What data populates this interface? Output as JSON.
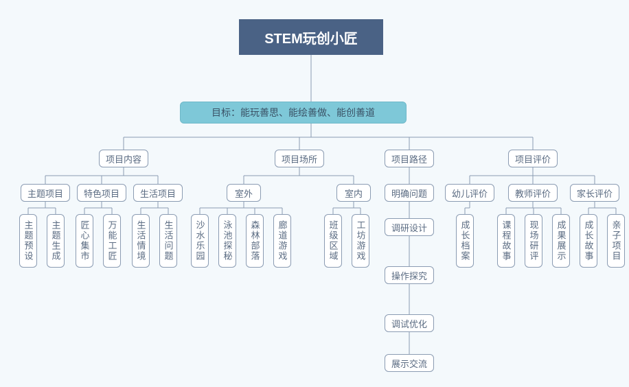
{
  "diagram": {
    "type": "tree",
    "background_color": "#f4f9fc",
    "node_border_color": "#8a9bb2",
    "node_bg_color": "#ffffff",
    "node_text_color": "#5a6b82",
    "connector_color": "#8a9bb2",
    "root": {
      "label": "STEM玩创小匠",
      "bg_color": "#4a6285",
      "text_color": "#ffffff",
      "font_size": 20
    },
    "goal": {
      "label": "目标：能玩善思、能绘善做、能创善道",
      "bg_color": "#7ec8d8",
      "text_color": "#3a5266",
      "font_size": 14
    },
    "level3": {
      "content": "项目内容",
      "place": "项目场所",
      "path": "项目路径",
      "eval": "项目评价"
    },
    "level4": {
      "theme": "主题项目",
      "feature": "特色项目",
      "life": "生活项目",
      "outdoor": "室外",
      "indoor": "室内",
      "clarify": "明确问题",
      "child": "幼儿评价",
      "teacher": "教师评价",
      "parent": "家长评价"
    },
    "leaves": {
      "theme1": "主题预设",
      "theme2": "主题生成",
      "feature1": "匠心集市",
      "feature2": "万能工匠",
      "life1": "生活情境",
      "life2": "生活问题",
      "out1": "沙水乐园",
      "out2": "泳池探秘",
      "out3": "森林部落",
      "out4": "廊道游戏",
      "in1": "班级区域",
      "in2": "工坊游戏",
      "path2": "调研设计",
      "path3": "操作探究",
      "path4": "调试优化",
      "path5": "展示交流",
      "child1": "成长档案",
      "teacher1": "课程故事",
      "teacher2": "现场研评",
      "teacher3": "成果展示",
      "parent1": "成长故事",
      "parent2": "亲子项目"
    }
  }
}
